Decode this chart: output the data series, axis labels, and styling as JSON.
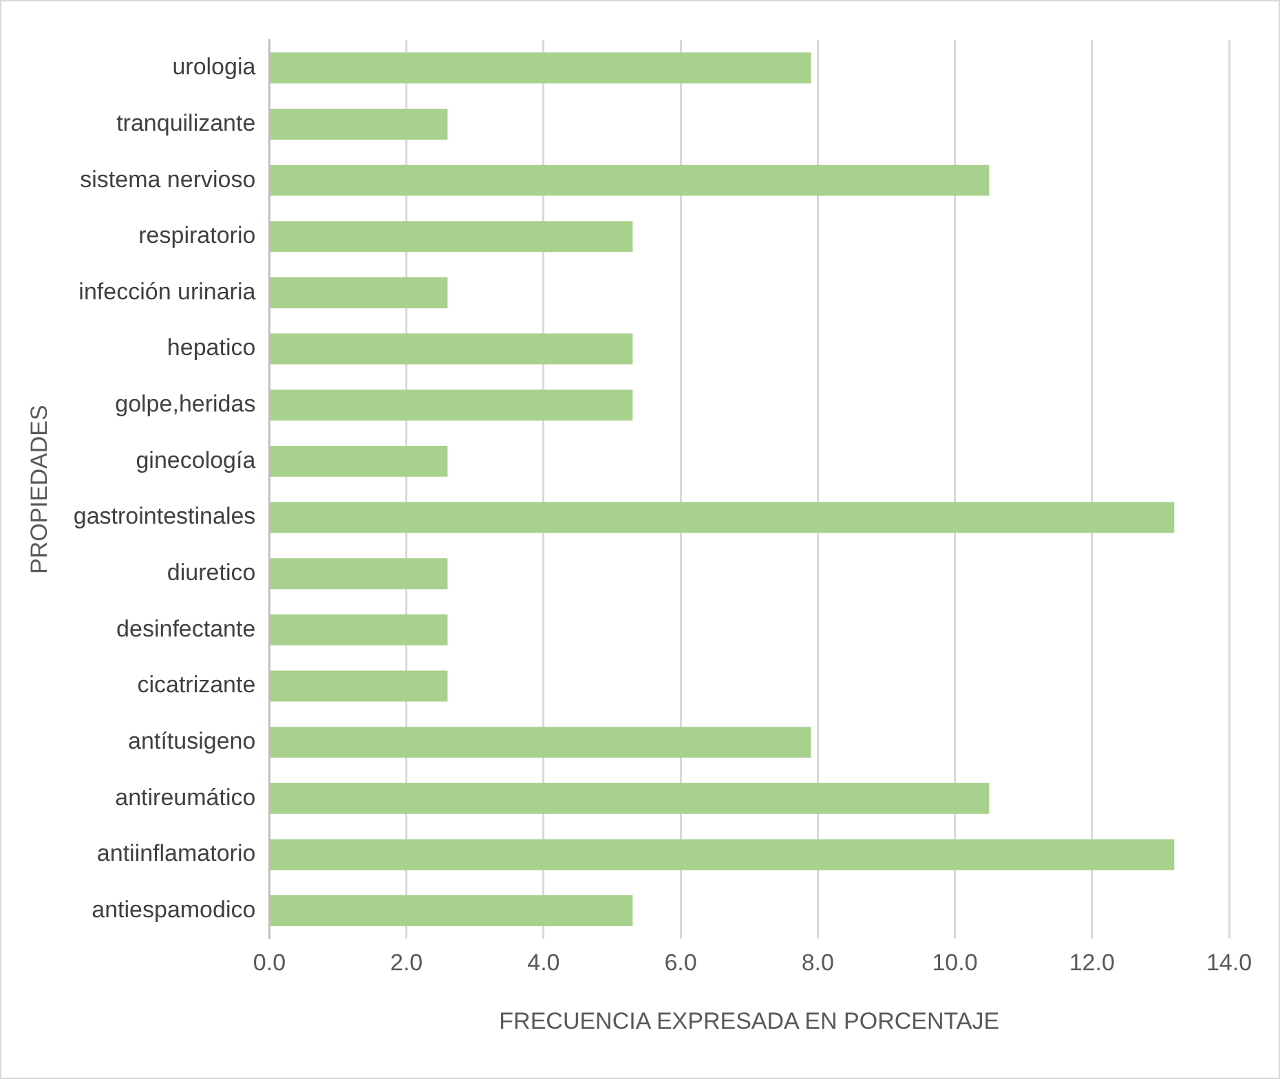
{
  "chart_data": {
    "type": "bar",
    "orientation": "horizontal",
    "xlabel": "FRECUENCIA EXPRESADA EN PORCENTAJE",
    "ylabel": "PROPIEDADES",
    "categories": [
      "urologia",
      "tranquilizante",
      "sistema nervioso",
      "respiratorio",
      "infección urinaria",
      "hepatico",
      "golpe,heridas",
      "ginecología",
      "gastrointestinales",
      "diuretico",
      "desinfectante",
      "cicatrizante",
      "antítusigeno",
      "antireumático",
      "antiinflamatorio",
      "antiespamodico"
    ],
    "values": [
      7.9,
      2.6,
      10.5,
      5.3,
      2.6,
      5.3,
      5.3,
      2.6,
      13.2,
      2.6,
      2.6,
      2.6,
      7.9,
      10.5,
      13.2,
      5.3
    ],
    "color": "#a9d18e",
    "xlim": [
      0,
      14
    ],
    "xticks": [
      {
        "value": 0,
        "label": "0.0"
      },
      {
        "value": 2,
        "label": "2.0"
      },
      {
        "value": 4,
        "label": "4.0"
      },
      {
        "value": 6,
        "label": "6.0"
      },
      {
        "value": 8,
        "label": "8.0"
      },
      {
        "value": 10,
        "label": "10.0"
      },
      {
        "value": 12,
        "label": "12.0"
      },
      {
        "value": 14,
        "label": "14.0"
      }
    ],
    "grid": "x",
    "legend": false
  }
}
